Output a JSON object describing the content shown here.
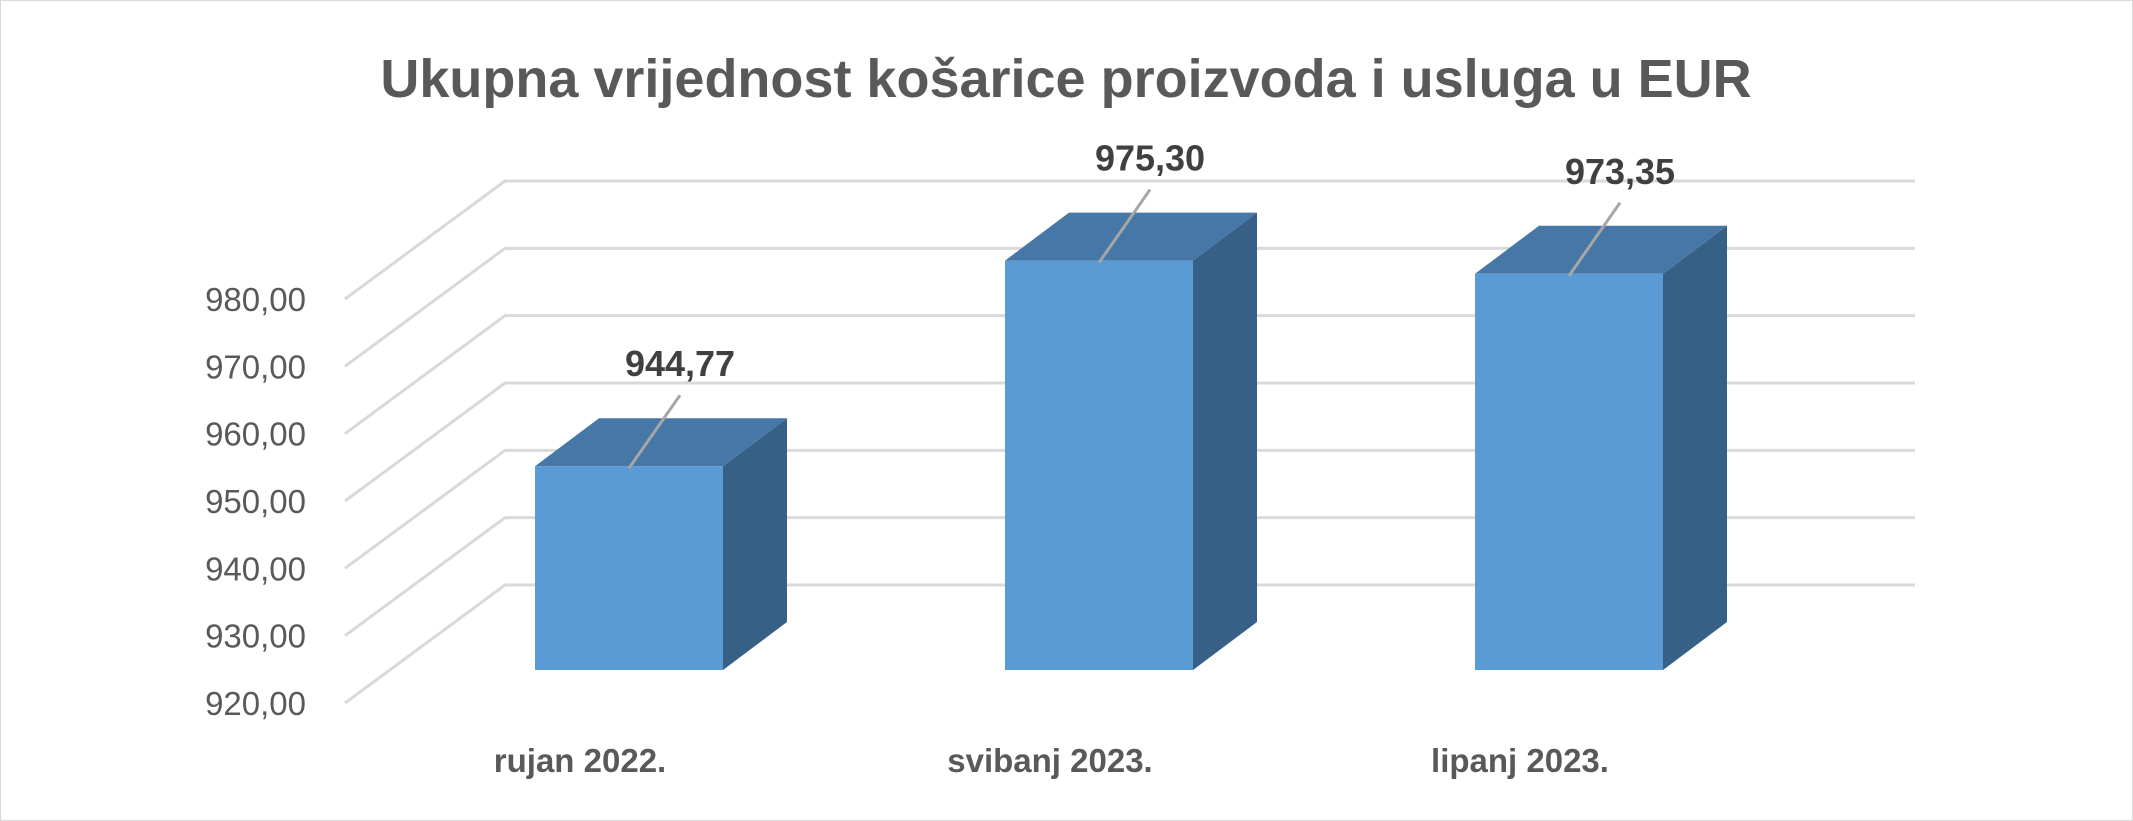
{
  "chart_data": {
    "type": "bar",
    "title": "Ukupna vrijednost košarice proizvoda i usluga u EUR",
    "categories": [
      "rujan 2022.",
      "svibanj 2023.",
      "lipanj 2023."
    ],
    "values": [
      944.77,
      975.3,
      973.35
    ],
    "data_labels": [
      "944,77",
      "975,30",
      "973,35"
    ],
    "y_ticks": [
      "920,00",
      "930,00",
      "940,00",
      "950,00",
      "960,00",
      "970,00",
      "980,00"
    ],
    "ylim": [
      920,
      980
    ],
    "xlabel": "",
    "ylabel": "",
    "grid": true,
    "legend": "none",
    "three_d": true,
    "colors": {
      "bar_front": "#5b9bd5",
      "bar_top": "#4677a6",
      "bar_side": "#376087",
      "gridline": "#d9d9d9",
      "text": "#595959",
      "label": "#404040",
      "leader": "#a6a6a6"
    }
  }
}
